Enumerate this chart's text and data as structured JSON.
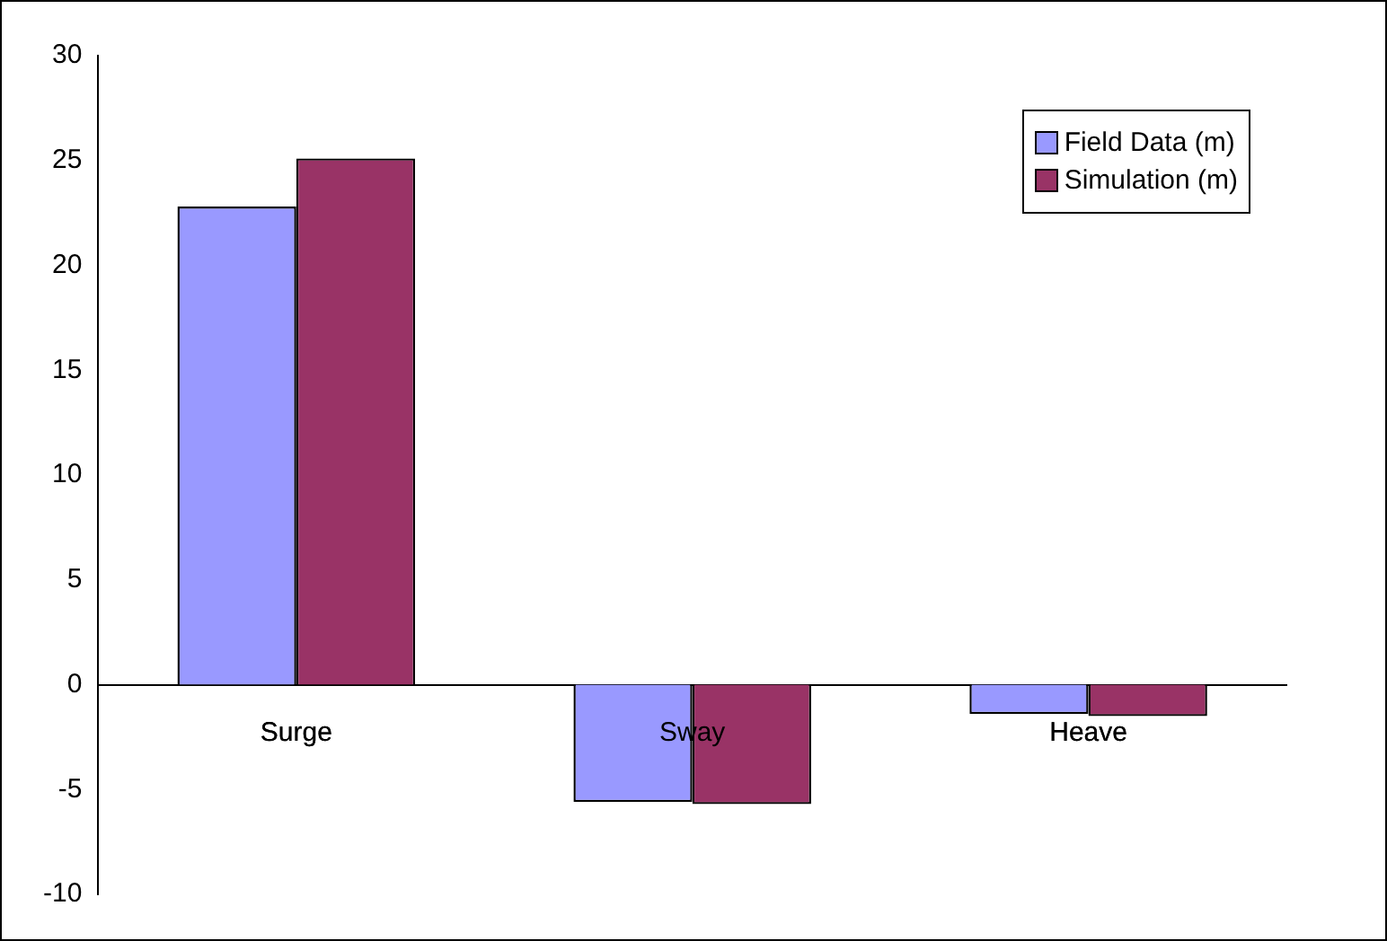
{
  "chart_data": {
    "type": "bar",
    "categories": [
      "Surge",
      "Sway",
      "Heave"
    ],
    "series": [
      {
        "name": "Field Data (m)",
        "color": "#9999ff",
        "values": [
          22.8,
          -5.6,
          -1.4
        ]
      },
      {
        "name": "Simulation (m)",
        "color": "#993366",
        "values": [
          25.1,
          -5.7,
          -1.5
        ]
      }
    ],
    "ylim": [
      -10,
      30
    ],
    "yticks": [
      -10,
      -5,
      0,
      5,
      10,
      15,
      20,
      25,
      30
    ],
    "grid": false,
    "legend": "top right"
  }
}
